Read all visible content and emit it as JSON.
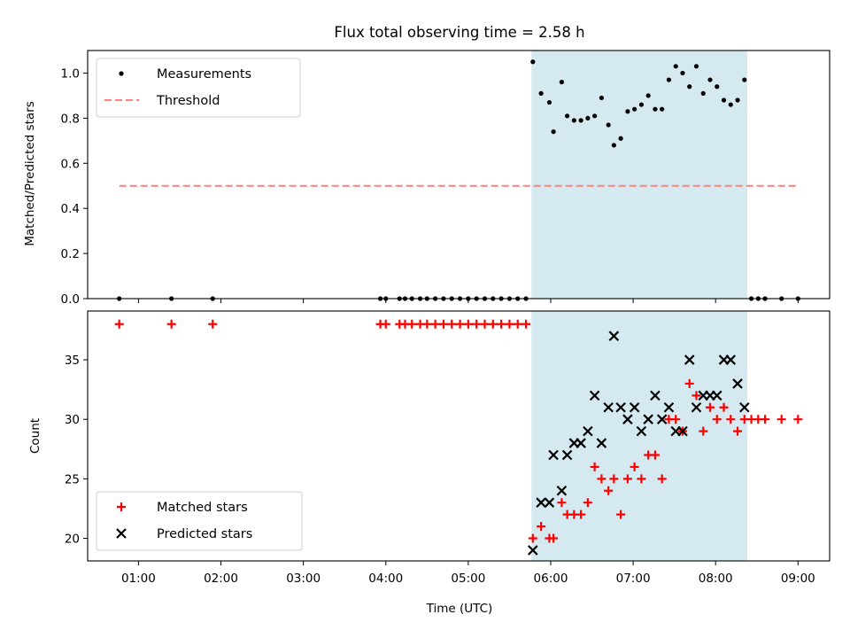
{
  "chart_data": [
    {
      "type": "scatter",
      "title": "Flux total observing time = 2.58 h",
      "ylabel": "Matched/Predicted stars",
      "xlabel": "",
      "xlim": [
        "00:23",
        "09:23"
      ],
      "ylim": [
        0,
        1.1
      ],
      "yticks": [
        "0.0",
        "0.2",
        "0.4",
        "0.6",
        "0.8",
        "1.0"
      ],
      "shaded_interval": [
        "05:46",
        "08:23"
      ],
      "shade_color": "#d4eaf0",
      "legend_position": "upper-left",
      "threshold": {
        "name": "Threshold",
        "value": 0.5,
        "x_range": [
          "00:46",
          "09:00"
        ],
        "color": "#ff7f7f",
        "style": "dashed"
      },
      "series": [
        {
          "name": "Measurements",
          "marker": "dot",
          "color": "#000000",
          "points": [
            [
              "00:46",
              0
            ],
            [
              "01:24",
              0
            ],
            [
              "01:54",
              0
            ],
            [
              "03:56",
              0
            ],
            [
              "04:00",
              0
            ],
            [
              "04:10",
              0
            ],
            [
              "04:14",
              0
            ],
            [
              "04:19",
              0
            ],
            [
              "04:25",
              0
            ],
            [
              "04:30",
              0
            ],
            [
              "04:36",
              0
            ],
            [
              "04:42",
              0
            ],
            [
              "04:48",
              0
            ],
            [
              "04:54",
              0
            ],
            [
              "05:00",
              0
            ],
            [
              "05:06",
              0
            ],
            [
              "05:12",
              0
            ],
            [
              "05:18",
              0
            ],
            [
              "05:24",
              0
            ],
            [
              "05:30",
              0
            ],
            [
              "05:36",
              0
            ],
            [
              "05:42",
              0
            ],
            [
              "05:47",
              1.05
            ],
            [
              "05:53",
              0.91
            ],
            [
              "05:59",
              0.87
            ],
            [
              "06:02",
              0.74
            ],
            [
              "06:08",
              0.96
            ],
            [
              "06:12",
              0.81
            ],
            [
              "06:17",
              0.79
            ],
            [
              "06:22",
              0.79
            ],
            [
              "06:27",
              0.8
            ],
            [
              "06:32",
              0.81
            ],
            [
              "06:37",
              0.89
            ],
            [
              "06:42",
              0.77
            ],
            [
              "06:46",
              0.68
            ],
            [
              "06:51",
              0.71
            ],
            [
              "06:56",
              0.83
            ],
            [
              "07:01",
              0.84
            ],
            [
              "07:06",
              0.86
            ],
            [
              "07:11",
              0.9
            ],
            [
              "07:16",
              0.84
            ],
            [
              "07:21",
              0.84
            ],
            [
              "07:26",
              0.97
            ],
            [
              "07:31",
              1.03
            ],
            [
              "07:36",
              1.0
            ],
            [
              "07:41",
              0.94
            ],
            [
              "07:46",
              1.03
            ],
            [
              "07:51",
              0.91
            ],
            [
              "07:56",
              0.97
            ],
            [
              "08:01",
              0.94
            ],
            [
              "08:06",
              0.88
            ],
            [
              "08:11",
              0.86
            ],
            [
              "08:16",
              0.88
            ],
            [
              "08:21",
              0.97
            ],
            [
              "08:26",
              0
            ],
            [
              "08:31",
              0
            ],
            [
              "08:36",
              0
            ],
            [
              "08:48",
              0
            ],
            [
              "09:00",
              0
            ]
          ]
        }
      ]
    },
    {
      "type": "scatter",
      "title": "",
      "ylabel": "Count",
      "xlabel": "Time (UTC)",
      "xlim": [
        "00:23",
        "09:23"
      ],
      "ylim": [
        18.1,
        39.1
      ],
      "yticks": [
        "20",
        "25",
        "30",
        "35"
      ],
      "xticks": [
        "01:00",
        "02:00",
        "03:00",
        "04:00",
        "05:00",
        "06:00",
        "07:00",
        "08:00",
        "09:00"
      ],
      "shaded_interval": [
        "05:46",
        "08:23"
      ],
      "shade_color": "#d4eaf0",
      "legend_position": "lower-left",
      "series": [
        {
          "name": "Matched stars",
          "marker": "plus",
          "color": "#ff0000",
          "points": [
            [
              "00:46",
              38
            ],
            [
              "01:24",
              38
            ],
            [
              "01:54",
              38
            ],
            [
              "03:56",
              38
            ],
            [
              "04:00",
              38
            ],
            [
              "04:10",
              38
            ],
            [
              "04:14",
              38
            ],
            [
              "04:19",
              38
            ],
            [
              "04:25",
              38
            ],
            [
              "04:30",
              38
            ],
            [
              "04:36",
              38
            ],
            [
              "04:42",
              38
            ],
            [
              "04:48",
              38
            ],
            [
              "04:54",
              38
            ],
            [
              "05:00",
              38
            ],
            [
              "05:06",
              38
            ],
            [
              "05:12",
              38
            ],
            [
              "05:18",
              38
            ],
            [
              "05:24",
              38
            ],
            [
              "05:30",
              38
            ],
            [
              "05:36",
              38
            ],
            [
              "05:42",
              38
            ],
            [
              "05:47",
              20
            ],
            [
              "05:53",
              21
            ],
            [
              "05:59",
              20
            ],
            [
              "06:02",
              20
            ],
            [
              "06:08",
              23
            ],
            [
              "06:12",
              22
            ],
            [
              "06:17",
              22
            ],
            [
              "06:22",
              22
            ],
            [
              "06:27",
              23
            ],
            [
              "06:32",
              26
            ],
            [
              "06:37",
              25
            ],
            [
              "06:42",
              24
            ],
            [
              "06:46",
              25
            ],
            [
              "06:51",
              22
            ],
            [
              "06:56",
              25
            ],
            [
              "07:01",
              26
            ],
            [
              "07:06",
              25
            ],
            [
              "07:11",
              27
            ],
            [
              "07:16",
              27
            ],
            [
              "07:21",
              25
            ],
            [
              "07:26",
              30
            ],
            [
              "07:31",
              30
            ],
            [
              "07:36",
              29
            ],
            [
              "07:41",
              33
            ],
            [
              "07:46",
              32
            ],
            [
              "07:51",
              29
            ],
            [
              "07:56",
              31
            ],
            [
              "08:01",
              30
            ],
            [
              "08:06",
              31
            ],
            [
              "08:11",
              30
            ],
            [
              "08:16",
              29
            ],
            [
              "08:21",
              30
            ],
            [
              "08:26",
              30
            ],
            [
              "08:31",
              30
            ],
            [
              "08:36",
              30
            ],
            [
              "08:48",
              30
            ],
            [
              "09:00",
              30
            ]
          ]
        },
        {
          "name": "Predicted stars",
          "marker": "x",
          "color": "#000000",
          "points": [
            [
              "05:47",
              19
            ],
            [
              "05:53",
              23
            ],
            [
              "05:59",
              23
            ],
            [
              "06:02",
              27
            ],
            [
              "06:08",
              24
            ],
            [
              "06:12",
              27
            ],
            [
              "06:17",
              28
            ],
            [
              "06:22",
              28
            ],
            [
              "06:27",
              29
            ],
            [
              "06:32",
              32
            ],
            [
              "06:37",
              28
            ],
            [
              "06:42",
              31
            ],
            [
              "06:46",
              37
            ],
            [
              "06:51",
              31
            ],
            [
              "06:56",
              30
            ],
            [
              "07:01",
              31
            ],
            [
              "07:06",
              29
            ],
            [
              "07:11",
              30
            ],
            [
              "07:16",
              32
            ],
            [
              "07:21",
              30
            ],
            [
              "07:26",
              31
            ],
            [
              "07:31",
              29
            ],
            [
              "07:36",
              29
            ],
            [
              "07:41",
              35
            ],
            [
              "07:46",
              31
            ],
            [
              "07:51",
              32
            ],
            [
              "07:56",
              32
            ],
            [
              "08:01",
              32
            ],
            [
              "08:06",
              35
            ],
            [
              "08:11",
              35
            ],
            [
              "08:16",
              33
            ],
            [
              "08:21",
              31
            ]
          ]
        }
      ]
    }
  ]
}
